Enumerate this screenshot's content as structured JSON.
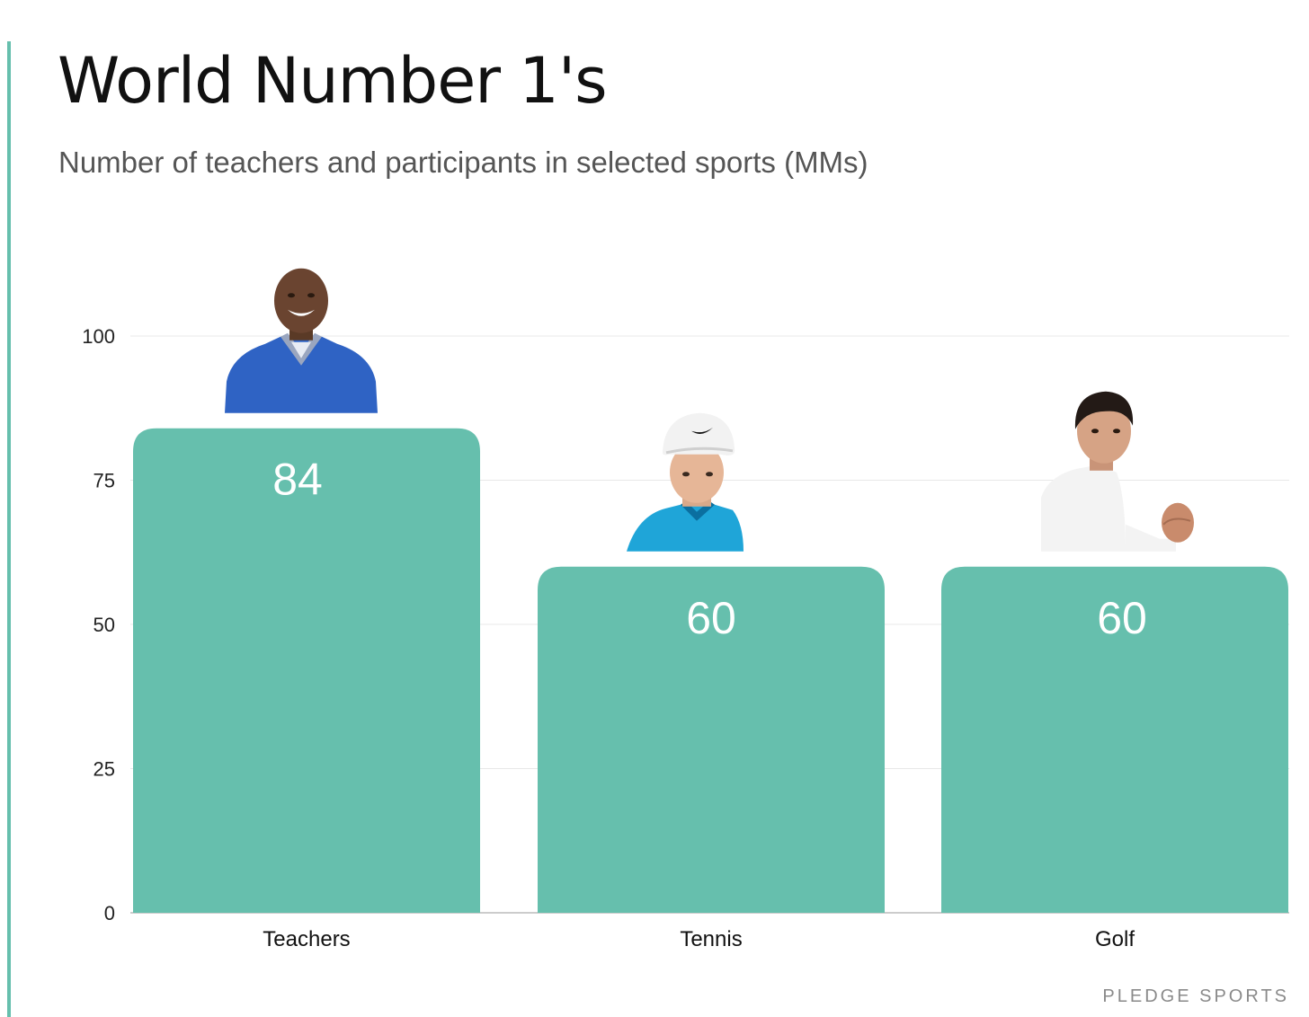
{
  "header": {
    "title": "World Number 1's",
    "subtitle": "Number of teachers and participants in selected sports (MMs)"
  },
  "footer": {
    "brand": "PLEDGE SPORTS"
  },
  "colors": {
    "accent": "#66bfad",
    "bar": "#66bfad",
    "grid": "#e8e8e8"
  },
  "chart_data": {
    "type": "bar",
    "categories": [
      "Teachers",
      "Tennis",
      "Golf"
    ],
    "values": [
      84,
      60,
      60
    ],
    "data_labels": [
      "84",
      "60",
      "60"
    ],
    "yticks": [
      0,
      25,
      50,
      75,
      100
    ],
    "ylim": [
      0,
      100
    ],
    "grid": true,
    "images": [
      "teacher-photo",
      "golfer-photo",
      "tennis-player-photo"
    ]
  }
}
